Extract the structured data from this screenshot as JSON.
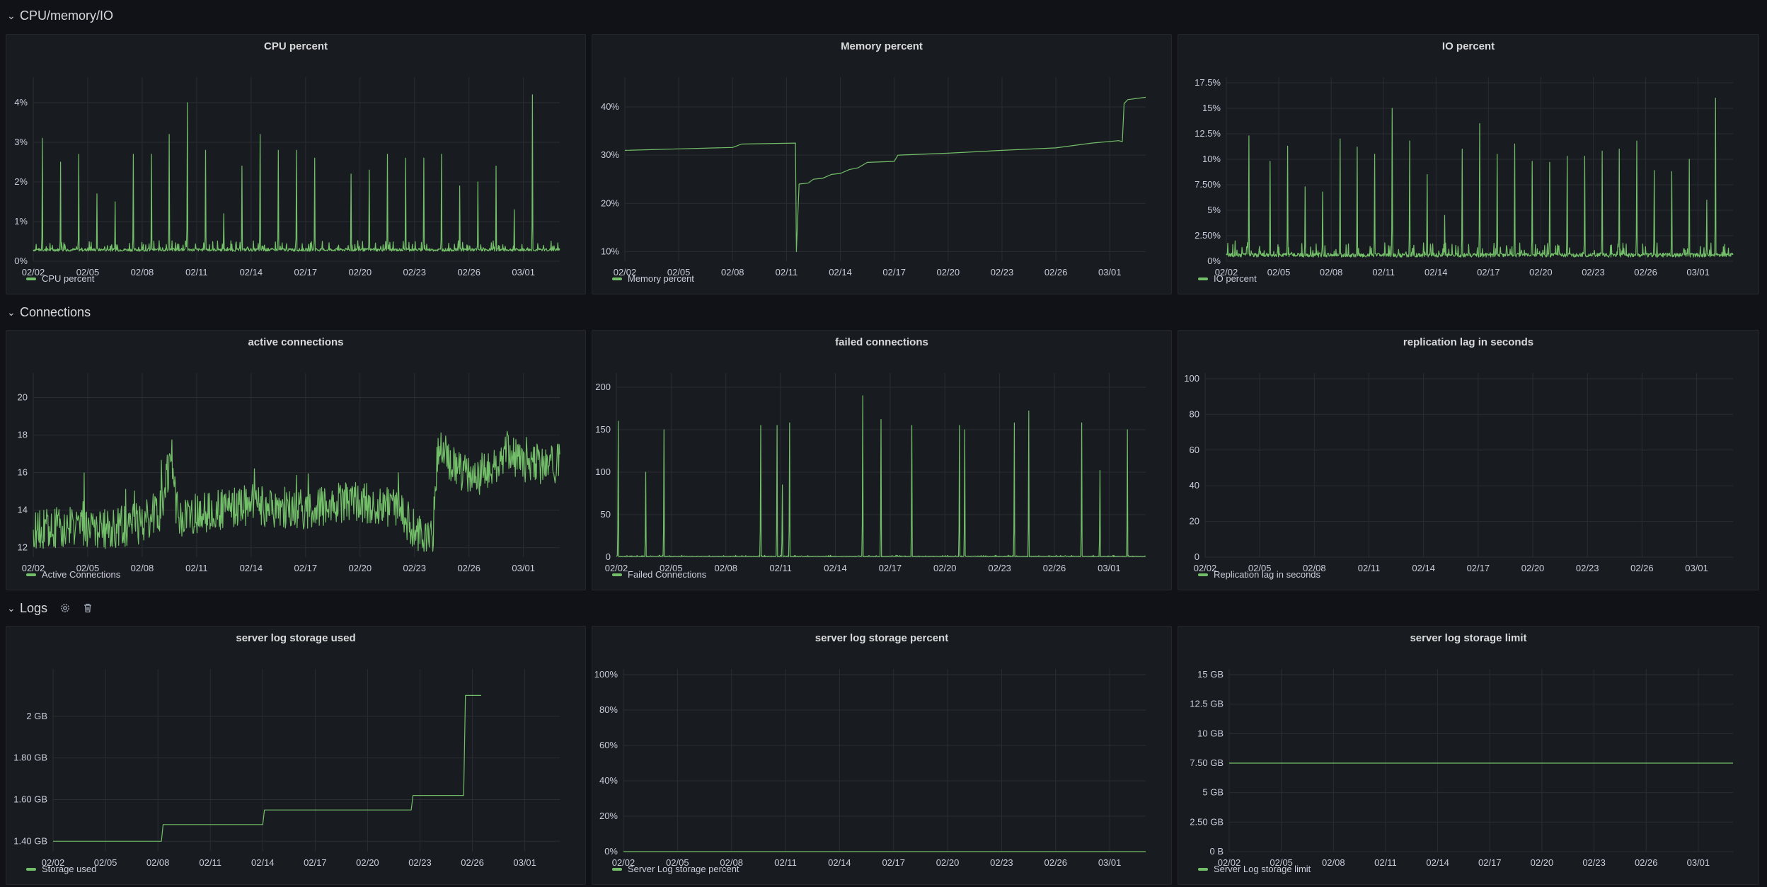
{
  "colors": {
    "series": "#73bf69",
    "background": "#111217",
    "panel": "#181b1f"
  },
  "rows": [
    {
      "title": "CPU/memory/IO",
      "icon": "chevron-down-icon"
    },
    {
      "title": "Connections",
      "icon": "chevron-down-icon"
    },
    {
      "title": "Logs",
      "icon": "chevron-down-icon",
      "tools": [
        "gear-icon",
        "trash-icon"
      ]
    }
  ],
  "panels": [
    {
      "title": "CPU percent",
      "legend": "CPU percent",
      "chart_data": {
        "type": "line",
        "ylim": [
          0,
          4.5
        ],
        "y_ticks": [
          "0%",
          "1%",
          "2%",
          "3%",
          "4%"
        ],
        "y_tick_values": [
          0,
          1,
          2,
          3,
          4
        ],
        "x_ticks": [
          "02/02",
          "02/05",
          "02/08",
          "02/11",
          "02/14",
          "02/17",
          "02/20",
          "02/23",
          "02/26",
          "03/01"
        ],
        "pattern": "spiky",
        "baseline": 0.25,
        "noise": 0.15,
        "spikes": [
          [
            0.5,
            3.1
          ],
          [
            1.5,
            2.5
          ],
          [
            2.5,
            2.7
          ],
          [
            3.5,
            1.7
          ],
          [
            4.5,
            1.5
          ],
          [
            5.5,
            2.7
          ],
          [
            6.5,
            2.7
          ],
          [
            7.5,
            3.2
          ],
          [
            8.5,
            4.0
          ],
          [
            9.5,
            2.8
          ],
          [
            10.5,
            1.2
          ],
          [
            11.5,
            2.4
          ],
          [
            12.5,
            3.2
          ],
          [
            13.5,
            2.8
          ],
          [
            14.5,
            2.8
          ],
          [
            15.5,
            2.6
          ],
          [
            17.5,
            2.2
          ],
          [
            18.5,
            2.3
          ],
          [
            19.5,
            2.7
          ],
          [
            20.5,
            2.6
          ],
          [
            21.5,
            2.6
          ],
          [
            22.5,
            2.7
          ],
          [
            23.5,
            1.9
          ],
          [
            24.5,
            2.0
          ],
          [
            25.5,
            2.4
          ],
          [
            26.5,
            1.3
          ],
          [
            27.5,
            4.2
          ]
        ],
        "series": [
          {
            "name": "CPU percent"
          }
        ]
      }
    },
    {
      "title": "Memory percent",
      "legend": "Memory percent",
      "chart_data": {
        "type": "line",
        "ylim": [
          8,
          45
        ],
        "y_ticks": [
          "10%",
          "20%",
          "30%",
          "40%"
        ],
        "y_tick_values": [
          10,
          20,
          30,
          40
        ],
        "x_ticks": [
          "02/02",
          "02/05",
          "02/08",
          "02/11",
          "02/14",
          "02/17",
          "02/20",
          "02/23",
          "02/26",
          "03/01"
        ],
        "pattern": "points",
        "points": [
          [
            0,
            31
          ],
          [
            3,
            31.3
          ],
          [
            6,
            31.6
          ],
          [
            6.5,
            32.3
          ],
          [
            9.5,
            32.5
          ],
          [
            9.55,
            10
          ],
          [
            9.7,
            24
          ],
          [
            10.2,
            24.2
          ],
          [
            10.5,
            25
          ],
          [
            11,
            25.2
          ],
          [
            11.5,
            26
          ],
          [
            12,
            26.2
          ],
          [
            12.5,
            27
          ],
          [
            13,
            27.4
          ],
          [
            13.5,
            28.5
          ],
          [
            15,
            28.7
          ],
          [
            15.2,
            30
          ],
          [
            18,
            30.4
          ],
          [
            21,
            31
          ],
          [
            24,
            31.5
          ],
          [
            26,
            32.5
          ],
          [
            27.5,
            33
          ],
          [
            27.7,
            32.8
          ],
          [
            27.8,
            40.7
          ],
          [
            28,
            41.5
          ],
          [
            29,
            42
          ]
        ],
        "series": [
          {
            "name": "Memory percent"
          }
        ]
      }
    },
    {
      "title": "IO percent",
      "legend": "IO percent",
      "chart_data": {
        "type": "line",
        "ylim": [
          0,
          17.5
        ],
        "y_ticks": [
          "0%",
          "2.50%",
          "5%",
          "7.50%",
          "10%",
          "12.5%",
          "15%",
          "17.5%"
        ],
        "y_tick_values": [
          0,
          2.5,
          5,
          7.5,
          10,
          12.5,
          15,
          17.5
        ],
        "x_ticks": [
          "02/02",
          "02/05",
          "02/08",
          "02/11",
          "02/14",
          "02/17",
          "02/20",
          "02/23",
          "02/26",
          "03/01"
        ],
        "pattern": "spiky",
        "baseline": 0.4,
        "noise": 0.8,
        "spikes": [
          [
            0.5,
            2
          ],
          [
            1.3,
            12.3
          ],
          [
            2.5,
            9.8
          ],
          [
            3.5,
            11.3
          ],
          [
            4.5,
            7.3
          ],
          [
            5.5,
            6.8
          ],
          [
            6.5,
            12
          ],
          [
            7.5,
            11.2
          ],
          [
            8.5,
            10.5
          ],
          [
            9.5,
            15
          ],
          [
            10.5,
            11.8
          ],
          [
            11.5,
            8.5
          ],
          [
            12.5,
            4.5
          ],
          [
            13.5,
            11
          ],
          [
            14.5,
            13.5
          ],
          [
            15.5,
            10.5
          ],
          [
            16.5,
            11.5
          ],
          [
            17.5,
            9.8
          ],
          [
            18.5,
            9.7
          ],
          [
            19.5,
            10.3
          ],
          [
            20.5,
            10.3
          ],
          [
            21.5,
            10.8
          ],
          [
            22.5,
            11
          ],
          [
            23.5,
            11.8
          ],
          [
            24.5,
            8.9
          ],
          [
            25.5,
            8.8
          ],
          [
            26.5,
            10
          ],
          [
            27.5,
            6
          ],
          [
            28,
            16
          ]
        ],
        "series": [
          {
            "name": "IO percent"
          }
        ]
      }
    },
    {
      "title": "active connections",
      "legend": "Active Connections",
      "chart_data": {
        "type": "line",
        "ylim": [
          11.5,
          21
        ],
        "y_ticks": [
          "12",
          "14",
          "16",
          "18",
          "20"
        ],
        "y_tick_values": [
          12,
          14,
          16,
          18,
          20
        ],
        "x_ticks": [
          "02/02",
          "02/05",
          "02/08",
          "02/11",
          "02/14",
          "02/17",
          "02/20",
          "02/23",
          "02/26",
          "03/01"
        ],
        "pattern": "noisy",
        "anchors": [
          [
            0,
            12.8
          ],
          [
            2,
            13.2
          ],
          [
            4,
            13
          ],
          [
            6,
            13.3
          ],
          [
            7,
            14
          ],
          [
            7.5,
            16.5
          ],
          [
            8,
            13.5
          ],
          [
            10,
            14
          ],
          [
            12,
            14.3
          ],
          [
            14,
            14
          ],
          [
            16,
            14.2
          ],
          [
            18,
            14.5
          ],
          [
            20,
            14
          ],
          [
            21,
            13
          ],
          [
            22,
            12.5
          ],
          [
            22.3,
            17.5
          ],
          [
            23,
            16.5
          ],
          [
            24,
            15.8
          ],
          [
            25,
            16
          ],
          [
            26,
            17
          ],
          [
            27,
            16.5
          ],
          [
            28,
            16.5
          ]
        ],
        "amp": 1.1,
        "series": [
          {
            "name": "Active Connections"
          }
        ]
      }
    },
    {
      "title": "failed connections",
      "legend": "Failed Connections",
      "chart_data": {
        "type": "line",
        "ylim": [
          0,
          210
        ],
        "y_ticks": [
          "0",
          "50",
          "100",
          "150",
          "200"
        ],
        "y_tick_values": [
          0,
          50,
          100,
          150,
          200
        ],
        "x_ticks": [
          "02/02",
          "02/05",
          "02/08",
          "02/11",
          "02/14",
          "02/17",
          "02/20",
          "02/23",
          "02/26",
          "03/01"
        ],
        "pattern": "spiky",
        "baseline": 0.5,
        "noise": 1,
        "spikes": [
          [
            0.1,
            160
          ],
          [
            1.6,
            100
          ],
          [
            2.6,
            150
          ],
          [
            7.9,
            155
          ],
          [
            8.8,
            155
          ],
          [
            9.1,
            85
          ],
          [
            9.5,
            158
          ],
          [
            13.5,
            190
          ],
          [
            14.5,
            162
          ],
          [
            16.2,
            155
          ],
          [
            18.8,
            155
          ],
          [
            19.1,
            150
          ],
          [
            21.8,
            158
          ],
          [
            22.6,
            172
          ],
          [
            25.5,
            158
          ],
          [
            26.5,
            102
          ],
          [
            28,
            150
          ]
        ],
        "series": [
          {
            "name": "Failed Connections"
          }
        ]
      }
    },
    {
      "title": "replication lag in seconds",
      "legend": "Replication lag in seconds",
      "chart_data": {
        "type": "line",
        "ylim": [
          0,
          100
        ],
        "y_ticks": [
          "0",
          "20",
          "40",
          "60",
          "80",
          "100"
        ],
        "y_tick_values": [
          0,
          20,
          40,
          60,
          80,
          100
        ],
        "x_ticks": [
          "02/02",
          "02/05",
          "02/08",
          "02/11",
          "02/14",
          "02/17",
          "02/20",
          "02/23",
          "02/26",
          "03/01"
        ],
        "pattern": "none",
        "series": [
          {
            "name": "Replication lag in seconds"
          }
        ]
      }
    },
    {
      "title": "server log storage used",
      "legend": "Storage used",
      "chart_data": {
        "type": "line",
        "ylim": [
          1.35,
          2.2
        ],
        "y_ticks": [
          "1.40 GB",
          "1.60 GB",
          "1.80 GB",
          "2 GB"
        ],
        "y_tick_values": [
          1.4,
          1.6,
          1.8,
          2.0
        ],
        "x_ticks": [
          "02/02",
          "02/05",
          "02/08",
          "02/11",
          "02/14",
          "02/17",
          "02/20",
          "02/23",
          "02/26",
          "03/01"
        ],
        "pattern": "step",
        "points": [
          [
            0,
            1.4
          ],
          [
            6.2,
            1.4
          ],
          [
            6.3,
            1.48
          ],
          [
            12,
            1.48
          ],
          [
            12.1,
            1.55
          ],
          [
            20.5,
            1.55
          ],
          [
            20.6,
            1.62
          ],
          [
            23.5,
            1.62
          ],
          [
            23.6,
            2.1
          ],
          [
            24.5,
            2.1
          ]
        ],
        "series": [
          {
            "name": "Storage used"
          }
        ]
      }
    },
    {
      "title": "server log storage percent",
      "legend": "Server Log storage percent",
      "chart_data": {
        "type": "line",
        "ylim": [
          0,
          100
        ],
        "y_ticks": [
          "0%",
          "20%",
          "40%",
          "60%",
          "80%",
          "100%"
        ],
        "y_tick_values": [
          0,
          20,
          40,
          60,
          80,
          100
        ],
        "x_ticks": [
          "02/02",
          "02/05",
          "02/08",
          "02/11",
          "02/14",
          "02/17",
          "02/20",
          "02/23",
          "02/26",
          "03/01"
        ],
        "pattern": "points",
        "points": [
          [
            0,
            0
          ],
          [
            29,
            0
          ]
        ],
        "series": [
          {
            "name": "Server Log storage percent"
          }
        ]
      }
    },
    {
      "title": "server log storage limit",
      "legend": "Server Log storage limit",
      "chart_data": {
        "type": "line",
        "ylim": [
          0,
          15
        ],
        "y_ticks": [
          "0 B",
          "2.50 GB",
          "5 GB",
          "7.50 GB",
          "10 GB",
          "12.5 GB",
          "15 GB"
        ],
        "y_tick_values": [
          0,
          2.5,
          5,
          7.5,
          10,
          12.5,
          15
        ],
        "x_ticks": [
          "02/02",
          "02/05",
          "02/08",
          "02/11",
          "02/14",
          "02/17",
          "02/20",
          "02/23",
          "02/26",
          "03/01"
        ],
        "pattern": "points",
        "points": [
          [
            0,
            7.5
          ],
          [
            29,
            7.5
          ]
        ],
        "series": [
          {
            "name": "Server Log storage limit"
          }
        ]
      }
    }
  ]
}
